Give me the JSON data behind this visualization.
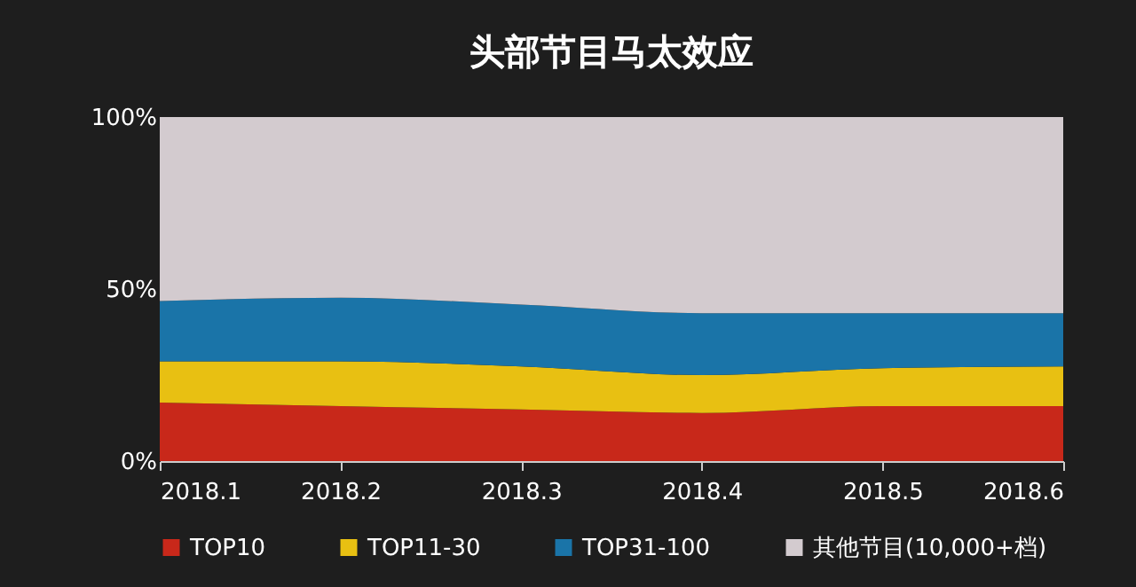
{
  "chart_data": {
    "type": "area",
    "title": "头部节目马太效应",
    "stacked": true,
    "categories": [
      "2018.1",
      "2018.2",
      "2018.3",
      "2018.4",
      "2018.5",
      "2018.6"
    ],
    "series": [
      {
        "name": "TOP10",
        "color": "#c8281a",
        "values": [
          17,
          16,
          15,
          14,
          16,
          16
        ]
      },
      {
        "name": "TOP11-30",
        "color": "#e8c012",
        "values": [
          12,
          13,
          12.5,
          11,
          11,
          11.5
        ]
      },
      {
        "name": "TOP31-100",
        "color": "#1a74a8",
        "values": [
          17.5,
          18.5,
          18,
          18,
          16,
          15.5
        ]
      },
      {
        "name": "其他节目(10,000+档)",
        "color": "#d3cbcf",
        "values": [
          53.5,
          52.5,
          54.5,
          57,
          57,
          57
        ]
      }
    ],
    "ylim": [
      0,
      100
    ],
    "yticks": [
      {
        "value": 0,
        "label": "0%"
      },
      {
        "value": 50,
        "label": "50%"
      },
      {
        "value": 100,
        "label": "100%"
      }
    ],
    "grid": false,
    "legend": "bottom"
  }
}
